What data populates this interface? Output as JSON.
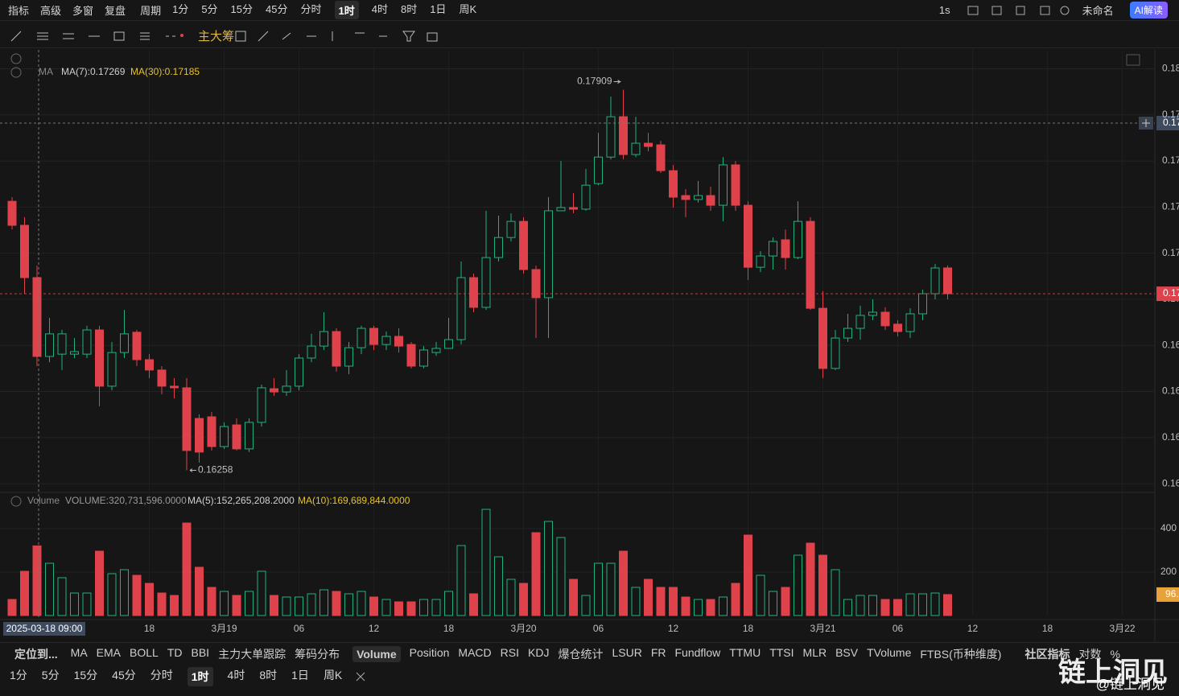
{
  "top_toolbar": {
    "left": [
      "指标",
      "高级",
      "多窗",
      "复盘"
    ],
    "period_menu": "周期",
    "periods": [
      "1分",
      "5分",
      "15分",
      "45分",
      "分时",
      "1时",
      "4时",
      "8时",
      "1日",
      "周K"
    ],
    "speed": "1s",
    "layout_name": "未命名",
    "ai_button": "AI解读"
  },
  "drawing_toolbar": {
    "labels": [
      "主",
      "大",
      "筹"
    ]
  },
  "chart_data": {
    "type": "candlestick",
    "legend": {
      "indicator": "MA",
      "ma7": "MA(7):0.17269",
      "ma30": "MA(30):0.17185"
    },
    "volume_legend": {
      "indicator": "Volume",
      "volume": "VOLUME:320,731,596.0000",
      "ma5": "MA(5):152,265,208.2000",
      "ma10": "MA(10):169,689,844.0000"
    },
    "up_color": "#20b27c",
    "down_color": "#e0424c",
    "ylim": [
      0.16169,
      0.18082
    ],
    "yticks": [
      {
        "value": 0.162,
        "label": "0.16"
      },
      {
        "value": 0.164,
        "label": "0.16"
      },
      {
        "value": 0.166,
        "label": "0.16"
      },
      {
        "value": 0.168,
        "label": "0.16"
      },
      {
        "value": 0.17,
        "label": "0.17"
      },
      {
        "value": 0.172,
        "label": "0.17"
      },
      {
        "value": 0.174,
        "label": "0.17"
      },
      {
        "value": 0.176,
        "label": "0.17"
      },
      {
        "value": 0.178,
        "label": "0.17"
      },
      {
        "value": 0.18,
        "label": "0.18"
      }
    ],
    "last_price_label": "0.17",
    "crosshair_price_label": "0.17",
    "crosshair_time_label": "2025-03-18 09:00",
    "xtick_labels": [
      "18",
      "3月19",
      "06",
      "12",
      "18",
      "3月20",
      "06",
      "12",
      "18",
      "3月21",
      "06",
      "12",
      "18",
      "3月22"
    ],
    "open": [
      0.17425,
      0.17321,
      0.17094,
      0.16752,
      0.16762,
      0.16762,
      0.16762,
      0.16867,
      0.16623,
      0.16769,
      0.16857,
      0.16738,
      0.16693,
      0.16623,
      0.16616,
      0.16483,
      0.1649,
      0.16361,
      0.16455,
      0.16351,
      0.16466,
      0.16612,
      0.16598,
      0.16623,
      0.16745,
      0.16797,
      0.1686,
      0.1671,
      0.1679,
      0.16874,
      0.16804,
      0.16839,
      0.16804,
      0.1671,
      0.16769,
      0.16787,
      0.16825,
      0.17094,
      0.16965,
      0.17181,
      0.17268,
      0.17338,
      0.17129,
      0.17007,
      0.17384,
      0.17398,
      0.17391,
      0.17502,
      0.17617,
      0.17792,
      0.17628,
      0.17677,
      0.1767,
      0.17558,
      0.1745,
      0.17433,
      0.1745,
      0.17408,
      0.17583,
      0.17408,
      0.17139,
      0.17188,
      0.17258,
      0.17181,
      0.17338,
      0.16961,
      0.167,
      0.16832,
      0.16874,
      0.1693,
      0.16944,
      0.16892,
      0.1686,
      0.16937,
      0.17024,
      0.17136
    ],
    "high": [
      0.17443,
      0.17356,
      0.17146,
      0.16919,
      0.16867,
      0.16832,
      0.16885,
      0.16885,
      0.16815,
      0.16954,
      0.16867,
      0.16762,
      0.1671,
      0.16658,
      0.16658,
      0.16501,
      0.16511,
      0.16466,
      0.16483,
      0.16483,
      0.1663,
      0.16658,
      0.16693,
      0.16762,
      0.1685,
      0.16944,
      0.16874,
      0.16815,
      0.16885,
      0.16885,
      0.1686,
      0.16874,
      0.16815,
      0.16797,
      0.16815,
      0.16919,
      0.17164,
      0.17111,
      0.17384,
      0.17363,
      0.17373,
      0.17356,
      0.17146,
      0.17443,
      0.176,
      0.1746,
      0.17565,
      0.17722,
      0.17879,
      0.17909,
      0.17792,
      0.17722,
      0.17687,
      0.17583,
      0.17478,
      0.17513,
      0.17488,
      0.17617,
      0.176,
      0.17425,
      0.17209,
      0.17268,
      0.17303,
      0.17425,
      0.17356,
      0.17035,
      0.16867,
      0.16937,
      0.16972,
      0.17,
      0.16965,
      0.16909,
      0.16961,
      0.17042,
      0.17153,
      0.17146
    ],
    "low": [
      0.17303,
      0.17024,
      0.1671,
      0.16727,
      0.16693,
      0.16745,
      0.16745,
      0.16536,
      0.16605,
      0.16745,
      0.1671,
      0.16658,
      0.16588,
      0.1657,
      0.16258,
      0.16291,
      0.16344,
      0.16351,
      0.16344,
      0.16337,
      0.16448,
      0.16581,
      0.16581,
      0.16605,
      0.16727,
      0.1678,
      0.16686,
      0.16675,
      0.16762,
      0.1678,
      0.1678,
      0.16769,
      0.167,
      0.167,
      0.16755,
      0.1679,
      0.16804,
      0.16944,
      0.16954,
      0.17164,
      0.17251,
      0.17111,
      0.16832,
      0.16832,
      0.17384,
      0.17373,
      0.17384,
      0.17495,
      0.17607,
      0.17607,
      0.17617,
      0.17642,
      0.17548,
      0.17398,
      0.17356,
      0.17419,
      0.17384,
      0.17338,
      0.17384,
      0.17084,
      0.17118,
      0.17129,
      0.17129,
      0.17174,
      0.16954,
      0.16658,
      0.16693,
      0.16815,
      0.16825,
      0.16909,
      0.16867,
      0.16839,
      0.16832,
      0.16909,
      0.17,
      0.17
    ],
    "close": [
      0.17321,
      0.17094,
      0.16752,
      0.1685,
      0.1685,
      0.16773,
      0.16867,
      0.16623,
      0.16769,
      0.1685,
      0.16738,
      0.16693,
      0.16623,
      0.16616,
      0.16344,
      0.16337,
      0.16361,
      0.16448,
      0.16351,
      0.16466,
      0.16616,
      0.16598,
      0.16623,
      0.16745,
      0.16797,
      0.1686,
      0.1671,
      0.1679,
      0.16874,
      0.16804,
      0.16839,
      0.16797,
      0.1671,
      0.1678,
      0.16787,
      0.16825,
      0.17094,
      0.16965,
      0.17181,
      0.17268,
      0.17338,
      0.17129,
      0.17007,
      0.17384,
      0.17398,
      0.17391,
      0.17495,
      0.17617,
      0.17792,
      0.17628,
      0.17677,
      0.17663,
      0.17558,
      0.17443,
      0.17433,
      0.1745,
      0.17408,
      0.17583,
      0.17408,
      0.17139,
      0.17188,
      0.17251,
      0.17181,
      0.17338,
      0.16961,
      0.167,
      0.16832,
      0.16874,
      0.1693,
      0.16944,
      0.16885,
      0.1686,
      0.16937,
      0.17024,
      0.17136,
      0.17024
    ],
    "volume": [
      74.1,
      203.7,
      320.73,
      240.7,
      174.1,
      103.7,
      103.7,
      296.3,
      192.6,
      211.1,
      185.2,
      148.1,
      103.7,
      92.6,
      425.9,
      222.2,
      129.6,
      111.1,
      92.6,
      111.1,
      203.7,
      92.6,
      85.2,
      85.2,
      100.0,
      118.5,
      111.1,
      100.0,
      111.1,
      85.2,
      74.1,
      63.0,
      63.0,
      74.1,
      74.1,
      111.1,
      322.2,
      100.0,
      488.9,
      270.4,
      166.7,
      148.1,
      381.5,
      433.3,
      359.3,
      166.7,
      92.6,
      240.7,
      240.7,
      296.3,
      129.6,
      166.7,
      129.6,
      129.6,
      85.2,
      74.1,
      74.1,
      85.2,
      148.1,
      370.4,
      185.2,
      111.1,
      129.6,
      277.8,
      333.3,
      277.8,
      211.1,
      74.1,
      92.6,
      92.6,
      74.1,
      74.1,
      100.0,
      100.0,
      103.7,
      96.5
    ],
    "vlim": [
      0,
      555.6
    ],
    "vticks": [
      200,
      400
    ],
    "last_volume_label": "96."
  },
  "indicator_bar": {
    "locate": "定位到...",
    "main": [
      "MA",
      "EMA",
      "BOLL",
      "TD",
      "BBI",
      "主力大单跟踪",
      "筹码分布"
    ],
    "sub": [
      "Volume",
      "Position",
      "MACD",
      "RSI",
      "KDJ",
      "爆仓统计",
      "LSUR",
      "FR",
      "Fundflow",
      "TTMU",
      "TTSI",
      "MLR",
      "BSV",
      "TVolume",
      "FTBS(币种维度)"
    ],
    "community": "社区指标",
    "log": "对数",
    "percent": "%"
  },
  "period_bar": [
    "1分",
    "5分",
    "15分",
    "45分",
    "分时",
    "1时",
    "4时",
    "8时",
    "1日",
    "周K"
  ],
  "watermark": {
    "title": "链上洞见",
    "handle": "@链上洞见"
  }
}
